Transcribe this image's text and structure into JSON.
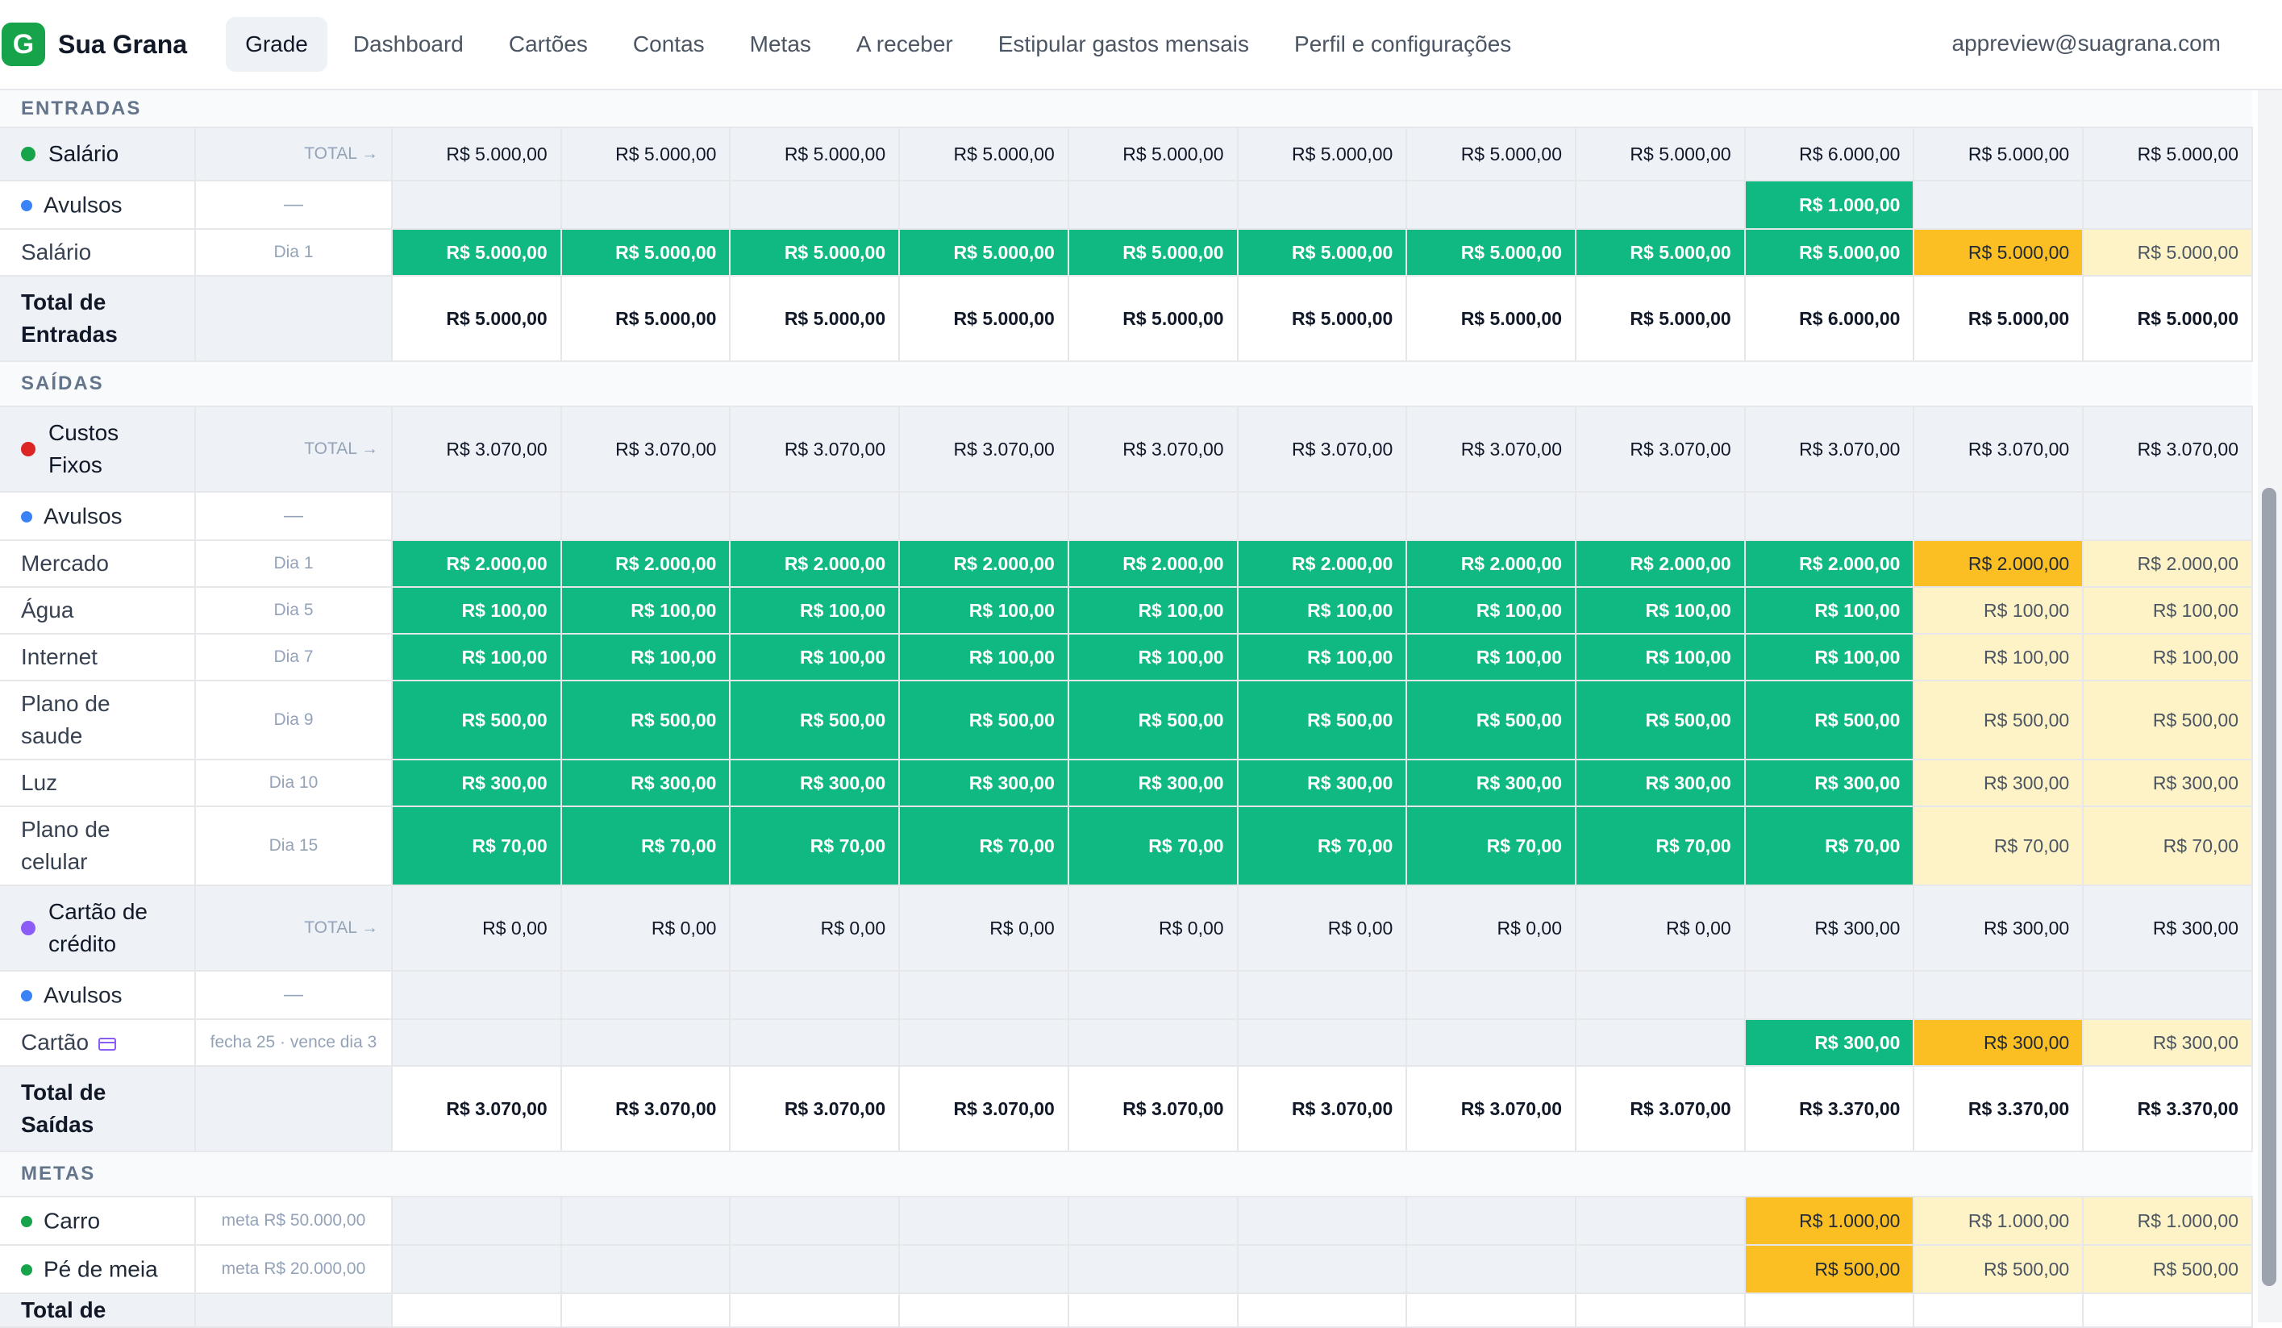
{
  "app": {
    "logo_letter": "G",
    "name": "Sua Grana",
    "user_email": "appreview@suagrana.com"
  },
  "nav": [
    {
      "label": "Grade",
      "active": true
    },
    {
      "label": "Dashboard"
    },
    {
      "label": "Cartões"
    },
    {
      "label": "Contas"
    },
    {
      "label": "Metas"
    },
    {
      "label": "A receber"
    },
    {
      "label": "Estipular gastos mensais"
    },
    {
      "label": "Perfil e configurações"
    }
  ],
  "colors": {
    "paid": "#10b981",
    "due": "#fbbf24",
    "future": "#fef3c7",
    "brand": "#16a34a"
  },
  "sections": {
    "entradas": "ENTRADAS",
    "saidas": "SAÍDAS",
    "metas": "METAS"
  },
  "rows": {
    "salario_group": {
      "name": "Salário",
      "dot": "#16a34a",
      "sched": "TOTAL →",
      "values": [
        "R$ 5.000,00",
        "R$ 5.000,00",
        "R$ 5.000,00",
        "R$ 5.000,00",
        "R$ 5.000,00",
        "R$ 5.000,00",
        "R$ 5.000,00",
        "R$ 5.000,00",
        "R$ 6.000,00",
        "R$ 5.000,00",
        "R$ 5.000,00"
      ]
    },
    "entradas_avulsos": {
      "name": "Avulsos",
      "sched": "—",
      "values": [
        "",
        "",
        "",
        "",
        "",
        "",
        "",
        "",
        "R$ 1.000,00",
        "",
        ""
      ],
      "status": [
        "empty",
        "empty",
        "empty",
        "empty",
        "empty",
        "empty",
        "empty",
        "empty",
        "paid",
        "empty",
        "empty"
      ]
    },
    "salario_item": {
      "name": "Salário",
      "sched": "Dia 1",
      "values": [
        "R$ 5.000,00",
        "R$ 5.000,00",
        "R$ 5.000,00",
        "R$ 5.000,00",
        "R$ 5.000,00",
        "R$ 5.000,00",
        "R$ 5.000,00",
        "R$ 5.000,00",
        "R$ 5.000,00",
        "R$ 5.000,00",
        "R$ 5.000,00"
      ],
      "status": [
        "paid",
        "paid",
        "paid",
        "paid",
        "paid",
        "paid",
        "paid",
        "paid",
        "paid",
        "due",
        "future"
      ]
    },
    "total_entradas": {
      "name": "Total de Entradas",
      "values": [
        "R$ 5.000,00",
        "R$ 5.000,00",
        "R$ 5.000,00",
        "R$ 5.000,00",
        "R$ 5.000,00",
        "R$ 5.000,00",
        "R$ 5.000,00",
        "R$ 5.000,00",
        "R$ 6.000,00",
        "R$ 5.000,00",
        "R$ 5.000,00"
      ]
    },
    "custos_group": {
      "name": "Custos Fixos",
      "dot": "#dc2626",
      "sched": "TOTAL →",
      "values": [
        "R$ 3.070,00",
        "R$ 3.070,00",
        "R$ 3.070,00",
        "R$ 3.070,00",
        "R$ 3.070,00",
        "R$ 3.070,00",
        "R$ 3.070,00",
        "R$ 3.070,00",
        "R$ 3.070,00",
        "R$ 3.070,00",
        "R$ 3.070,00"
      ]
    },
    "custos_avulsos": {
      "name": "Avulsos",
      "sched": "—",
      "values": [
        "",
        "",
        "",
        "",
        "",
        "",
        "",
        "",
        "",
        "",
        ""
      ],
      "status": [
        "empty",
        "empty",
        "empty",
        "empty",
        "empty",
        "empty",
        "empty",
        "empty",
        "empty",
        "empty",
        "empty"
      ]
    },
    "mercado": {
      "name": "Mercado",
      "sched": "Dia 1",
      "values": [
        "R$ 2.000,00",
        "R$ 2.000,00",
        "R$ 2.000,00",
        "R$ 2.000,00",
        "R$ 2.000,00",
        "R$ 2.000,00",
        "R$ 2.000,00",
        "R$ 2.000,00",
        "R$ 2.000,00",
        "R$ 2.000,00",
        "R$ 2.000,00"
      ],
      "status": [
        "paid",
        "paid",
        "paid",
        "paid",
        "paid",
        "paid",
        "paid",
        "paid",
        "paid",
        "due",
        "future"
      ]
    },
    "agua": {
      "name": "Água",
      "sched": "Dia 5",
      "values": [
        "R$ 100,00",
        "R$ 100,00",
        "R$ 100,00",
        "R$ 100,00",
        "R$ 100,00",
        "R$ 100,00",
        "R$ 100,00",
        "R$ 100,00",
        "R$ 100,00",
        "R$ 100,00",
        "R$ 100,00"
      ],
      "status": [
        "paid",
        "paid",
        "paid",
        "paid",
        "paid",
        "paid",
        "paid",
        "paid",
        "paid",
        "future",
        "future"
      ]
    },
    "internet": {
      "name": "Internet",
      "sched": "Dia 7",
      "values": [
        "R$ 100,00",
        "R$ 100,00",
        "R$ 100,00",
        "R$ 100,00",
        "R$ 100,00",
        "R$ 100,00",
        "R$ 100,00",
        "R$ 100,00",
        "R$ 100,00",
        "R$ 100,00",
        "R$ 100,00"
      ],
      "status": [
        "paid",
        "paid",
        "paid",
        "paid",
        "paid",
        "paid",
        "paid",
        "paid",
        "paid",
        "future",
        "future"
      ]
    },
    "plano_saude": {
      "name": "Plano de saude",
      "sched": "Dia 9",
      "values": [
        "R$ 500,00",
        "R$ 500,00",
        "R$ 500,00",
        "R$ 500,00",
        "R$ 500,00",
        "R$ 500,00",
        "R$ 500,00",
        "R$ 500,00",
        "R$ 500,00",
        "R$ 500,00",
        "R$ 500,00"
      ],
      "status": [
        "paid",
        "paid",
        "paid",
        "paid",
        "paid",
        "paid",
        "paid",
        "paid",
        "paid",
        "future",
        "future"
      ]
    },
    "luz": {
      "name": "Luz",
      "sched": "Dia 10",
      "values": [
        "R$ 300,00",
        "R$ 300,00",
        "R$ 300,00",
        "R$ 300,00",
        "R$ 300,00",
        "R$ 300,00",
        "R$ 300,00",
        "R$ 300,00",
        "R$ 300,00",
        "R$ 300,00",
        "R$ 300,00"
      ],
      "status": [
        "paid",
        "paid",
        "paid",
        "paid",
        "paid",
        "paid",
        "paid",
        "paid",
        "paid",
        "future",
        "future"
      ]
    },
    "plano_celular": {
      "name": "Plano de celular",
      "sched": "Dia 15",
      "values": [
        "R$ 70,00",
        "R$ 70,00",
        "R$ 70,00",
        "R$ 70,00",
        "R$ 70,00",
        "R$ 70,00",
        "R$ 70,00",
        "R$ 70,00",
        "R$ 70,00",
        "R$ 70,00",
        "R$ 70,00"
      ],
      "status": [
        "paid",
        "paid",
        "paid",
        "paid",
        "paid",
        "paid",
        "paid",
        "paid",
        "paid",
        "future",
        "future"
      ]
    },
    "cartao_group": {
      "name": "Cartão de crédito",
      "dot": "#8b5cf6",
      "sched": "TOTAL →",
      "values": [
        "R$ 0,00",
        "R$ 0,00",
        "R$ 0,00",
        "R$ 0,00",
        "R$ 0,00",
        "R$ 0,00",
        "R$ 0,00",
        "R$ 0,00",
        "R$ 300,00",
        "R$ 300,00",
        "R$ 300,00"
      ]
    },
    "cartao_avulsos": {
      "name": "Avulsos",
      "sched": "—",
      "values": [
        "",
        "",
        "",
        "",
        "",
        "",
        "",
        "",
        "",
        "",
        ""
      ],
      "status": [
        "empty",
        "empty",
        "empty",
        "empty",
        "empty",
        "empty",
        "empty",
        "empty",
        "empty",
        "empty",
        "empty"
      ]
    },
    "cartao_item": {
      "name": "Cartão",
      "sched": "fecha 25 · vence dia 3",
      "values": [
        "",
        "",
        "",
        "",
        "",
        "",
        "",
        "",
        "R$ 300,00",
        "R$ 300,00",
        "R$ 300,00"
      ],
      "status": [
        "empty",
        "empty",
        "empty",
        "empty",
        "empty",
        "empty",
        "empty",
        "empty",
        "paid",
        "due",
        "future"
      ]
    },
    "total_saidas": {
      "name": "Total de Saídas",
      "values": [
        "R$ 3.070,00",
        "R$ 3.070,00",
        "R$ 3.070,00",
        "R$ 3.070,00",
        "R$ 3.070,00",
        "R$ 3.070,00",
        "R$ 3.070,00",
        "R$ 3.070,00",
        "R$ 3.370,00",
        "R$ 3.370,00",
        "R$ 3.370,00"
      ]
    },
    "meta_carro": {
      "name": "Carro",
      "sched": "meta R$ 50.000,00",
      "values": [
        "",
        "",
        "",
        "",
        "",
        "",
        "",
        "",
        "R$ 1.000,00",
        "R$ 1.000,00",
        "R$ 1.000,00"
      ],
      "status": [
        "empty",
        "empty",
        "empty",
        "empty",
        "empty",
        "empty",
        "empty",
        "empty",
        "due",
        "future",
        "future"
      ]
    },
    "meta_pe_de_meia": {
      "name": "Pé de meia",
      "sched": "meta R$ 20.000,00",
      "values": [
        "",
        "",
        "",
        "",
        "",
        "",
        "",
        "",
        "R$ 500,00",
        "R$ 500,00",
        "R$ 500,00"
      ],
      "status": [
        "empty",
        "empty",
        "empty",
        "empty",
        "empty",
        "empty",
        "empty",
        "empty",
        "due",
        "future",
        "future"
      ]
    },
    "total_metas": {
      "name": "Total de"
    }
  }
}
